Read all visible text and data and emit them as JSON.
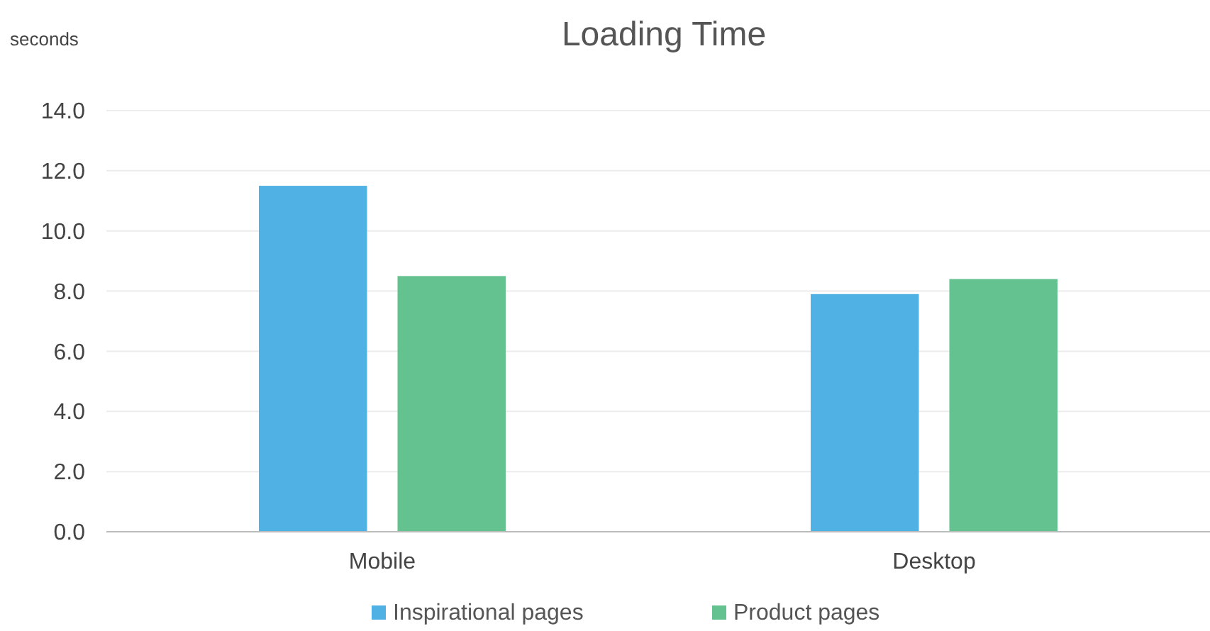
{
  "chart_data": {
    "type": "bar",
    "title": "Loading Time",
    "ylabel": "seconds",
    "categories": [
      "Mobile",
      "Desktop"
    ],
    "series": [
      {
        "name": "Inspirational pages",
        "color": "#4fb1e4",
        "values": [
          11.5,
          7.9
        ]
      },
      {
        "name": "Product pages",
        "color": "#63c28f",
        "values": [
          8.5,
          8.4
        ]
      }
    ],
    "ylim": [
      0,
      14
    ],
    "yticks": [
      {
        "value": 0,
        "label": "0.0"
      },
      {
        "value": 2,
        "label": "2.0"
      },
      {
        "value": 4,
        "label": "4.0"
      },
      {
        "value": 6,
        "label": "6.0"
      },
      {
        "value": 8,
        "label": "8.0"
      },
      {
        "value": 10,
        "label": "10.0"
      },
      {
        "value": 12,
        "label": "12.0"
      },
      {
        "value": 14,
        "label": "14.0"
      }
    ],
    "grid": "y",
    "legend": "bottom"
  }
}
